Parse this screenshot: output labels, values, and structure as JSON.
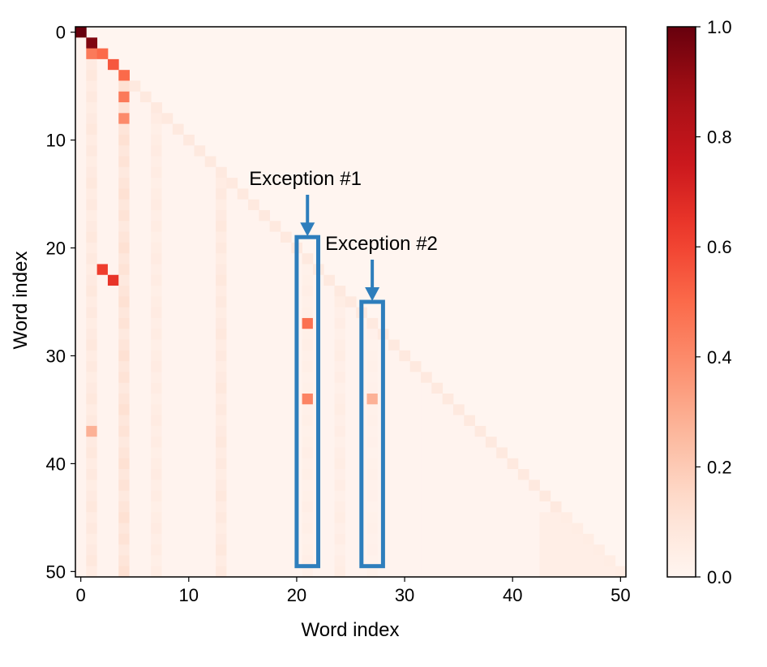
{
  "chart_data": {
    "type": "heatmap",
    "title": "",
    "xlabel": "Word index",
    "ylabel": "Word index",
    "n": 51,
    "x_ticks": [
      "0",
      "10",
      "20",
      "30",
      "40",
      "50"
    ],
    "y_ticks": [
      "0",
      "10",
      "20",
      "30",
      "40",
      "50"
    ],
    "x_range": [
      0,
      50
    ],
    "y_range": [
      0,
      50
    ],
    "y_inverted": true,
    "colormap": "Reds",
    "colors": {
      "low": "#fff5f0",
      "mid_low": "#fcbba1",
      "mid": "#fb6a4a",
      "mid_high": "#cb181d",
      "high": "#67000d",
      "annotation": "#2e7ebc"
    },
    "colorbar": {
      "min": 0.0,
      "max": 1.0,
      "ticks": [
        "0.0",
        "0.2",
        "0.4",
        "0.6",
        "0.8",
        "1.0"
      ]
    },
    "structure": "lower-triangular attention matrix (row i attends to columns 0..i)",
    "notable_cells": [
      {
        "row": 0,
        "col": 0,
        "value": 1.0
      },
      {
        "row": 1,
        "col": 1,
        "value": 0.95
      },
      {
        "row": 2,
        "col": 1,
        "value": 0.45
      },
      {
        "row": 2,
        "col": 2,
        "value": 0.5
      },
      {
        "row": 3,
        "col": 3,
        "value": 0.55
      },
      {
        "row": 4,
        "col": 4,
        "value": 0.5
      },
      {
        "row": 6,
        "col": 4,
        "value": 0.45
      },
      {
        "row": 8,
        "col": 4,
        "value": 0.4
      },
      {
        "row": 22,
        "col": 2,
        "value": 0.62
      },
      {
        "row": 23,
        "col": 3,
        "value": 0.65
      },
      {
        "row": 27,
        "col": 21,
        "value": 0.48
      },
      {
        "row": 34,
        "col": 21,
        "value": 0.42
      },
      {
        "row": 34,
        "col": 27,
        "value": 0.28
      },
      {
        "row": 37,
        "col": 1,
        "value": 0.28
      }
    ],
    "highlight_columns": [
      21,
      27
    ],
    "annotations": [
      {
        "text": "Exception #1",
        "column": 21,
        "box_rows": [
          20,
          50
        ]
      },
      {
        "text": "Exception #2",
        "column": 27,
        "box_rows": [
          26,
          50
        ]
      }
    ]
  }
}
